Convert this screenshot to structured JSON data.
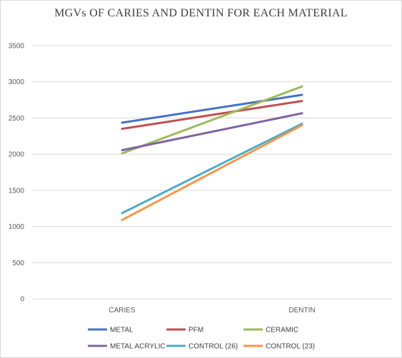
{
  "chart_data": {
    "type": "line",
    "title": "MGVs OF CARIES AND DENTIN FOR EACH MATERIAL",
    "xlabel": "",
    "ylabel": "",
    "categories": [
      "CARIES",
      "DENTIN"
    ],
    "ylim": [
      0,
      3500
    ],
    "yticks": [
      0,
      500,
      1000,
      1500,
      2000,
      2500,
      3000,
      3500
    ],
    "grid": true,
    "legend_position": "bottom",
    "series": [
      {
        "name": "METAL",
        "values": [
          2435,
          2820
        ],
        "color": "#4472c4"
      },
      {
        "name": "PFM",
        "values": [
          2350,
          2735
        ],
        "color": "#c0504d"
      },
      {
        "name": "CERAMIC",
        "values": [
          2010,
          2935
        ],
        "color": "#9bbb59"
      },
      {
        "name": "METAL ACRYLIC",
        "values": [
          2055,
          2565
        ],
        "color": "#8064a2"
      },
      {
        "name": "CONTROL (26)",
        "values": [
          1185,
          2420
        ],
        "color": "#4bacc6"
      },
      {
        "name": "CONTROL (23)",
        "values": [
          1090,
          2400
        ],
        "color": "#f79646"
      }
    ]
  }
}
